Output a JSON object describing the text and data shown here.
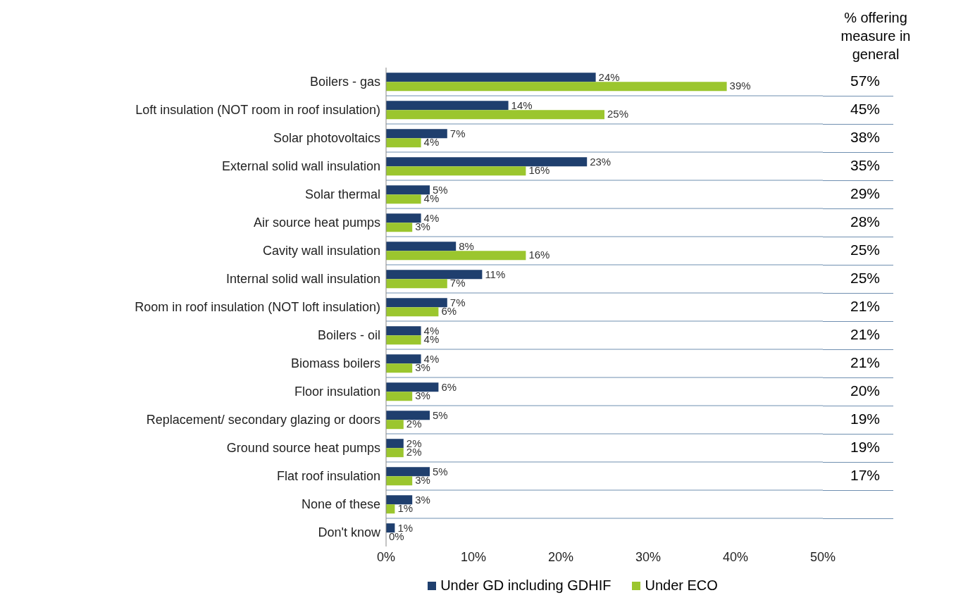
{
  "chart_data": {
    "type": "bar",
    "orientation": "horizontal",
    "categories": [
      "Boilers - gas",
      "Loft insulation (NOT room in roof insulation)",
      "Solar photovoltaics",
      "External solid wall insulation",
      "Solar thermal",
      "Air source heat pumps",
      "Cavity wall insulation",
      "Internal solid wall insulation",
      "Room in roof insulation (NOT loft insulation)",
      "Boilers - oil",
      "Biomass boilers",
      "Floor insulation",
      "Replacement/ secondary glazing or doors",
      "Ground source heat pumps",
      "Flat roof insulation",
      "None of these",
      "Don't know"
    ],
    "series": [
      {
        "name": "Under GD including GDHIF",
        "color": "#1f3f6e",
        "values": [
          24,
          14,
          7,
          23,
          5,
          4,
          8,
          11,
          7,
          4,
          4,
          6,
          5,
          2,
          5,
          3,
          1
        ],
        "value_labels": [
          "24%",
          "14%",
          "7%",
          "23%",
          "5%",
          "4%",
          "8%",
          "11%",
          "7%",
          "4%",
          "4%",
          "6%",
          "5%",
          "2%",
          "5%",
          "3%",
          "1%"
        ]
      },
      {
        "name": "Under ECO",
        "color": "#9bc62e",
        "values": [
          39,
          25,
          4,
          16,
          4,
          3,
          16,
          7,
          6,
          4,
          3,
          3,
          2,
          2,
          3,
          1,
          0
        ],
        "value_labels": [
          "39%",
          "25%",
          "4%",
          "16%",
          "4%",
          "3%",
          "16%",
          "7%",
          "6%",
          "4%",
          "3%",
          "3%",
          "2%",
          "2%",
          "3%",
          "1%",
          "0%"
        ]
      }
    ],
    "xlim": [
      0,
      50
    ],
    "xticks": [
      {
        "value": 0,
        "label": "0%"
      },
      {
        "value": 10,
        "label": "10%"
      },
      {
        "value": 20,
        "label": "20%"
      },
      {
        "value": 30,
        "label": "30%"
      },
      {
        "value": 40,
        "label": "40%"
      },
      {
        "value": 50,
        "label": "50%"
      }
    ],
    "grid": "y",
    "legend": "bottom",
    "annotations": [
      "% offering measure in general",
      "57%",
      "45%",
      "38%",
      "35%",
      "29%",
      "28%",
      "25%",
      "25%",
      "21%",
      "21%",
      "21%",
      "20%",
      "19%",
      "19%",
      "17%"
    ]
  }
}
